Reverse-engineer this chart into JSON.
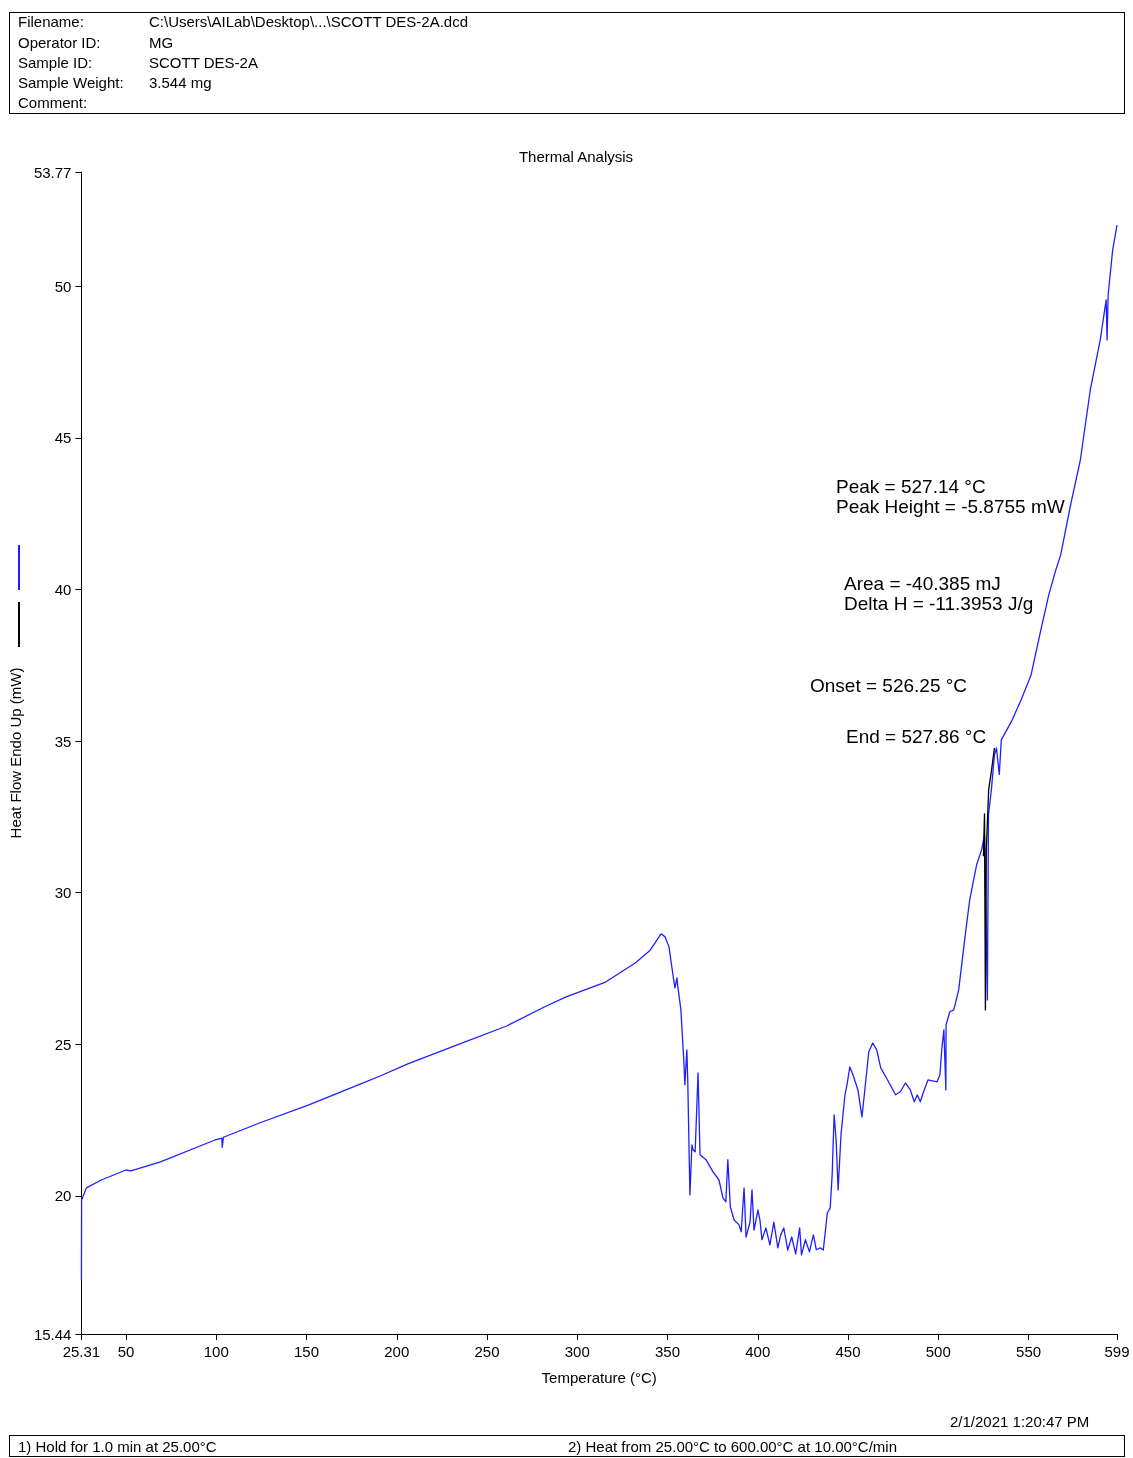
{
  "chart_data": {
    "type": "line",
    "title": "Thermal Analysis",
    "xlabel": "Temperature (°C)",
    "ylabel": "Heat Flow Endo Up (mW)",
    "annotations": [
      "Filename:",
      "C:\\Users\\AILab\\Desktop\\...\\SCOTT DES-2A.dcd",
      "Operator ID:",
      "MG",
      "Sample ID:",
      "SCOTT DES-2A",
      "Sample Weight:",
      "3.544 mg",
      "Comment:",
      "Peak = 527.14 °C",
      "Peak Height = -5.8755 mW",
      "Area = -40.385 mJ",
      "Delta H = -11.3953 J/g",
      "Onset = 526.25 °C",
      "End = 527.86 °C",
      "2/1/2021 1:20:47 PM",
      "1)  Hold for 1.0 min at 25.00°C",
      "2)    Heat from 25.00°C to 600.00°C at 10.00°C/min"
    ],
    "series": [
      {
        "color": "#2020ff",
        "x": [
          25.31,
          25.4,
          28.05,
          36.3,
          50,
          52.7,
          69.1,
          99.3,
          103.1,
          103.3,
          104,
          123.9,
          151.3,
          178.7,
          190.8,
          206.1,
          233.5,
          260.9,
          282.8,
          293.8,
          315.7,
          332.1,
          340.4,
          346.4,
          348.6,
          350.8,
          353,
          354.1,
          355.2,
          355.7,
          357.4,
          359,
          359.6,
          360.7,
          361.2,
          362.4,
          363.5,
          364.1,
          365.3,
          366.9,
          368,
          371.3,
          375.2,
          378.5,
          380.7,
          382.3,
          383.4,
          384.8,
          386.9,
          389.6,
          390.8,
          392.4,
          393.5,
          395.7,
          396.8,
          397.9,
          400.1,
          401.2,
          402.3,
          404.5,
          406.7,
          408.9,
          411.1,
          412.7,
          414.4,
          416.6,
          418.8,
          421,
          423.2,
          424.2,
          426.4,
          428.6,
          430.8,
          432.4,
          434.6,
          436.3,
          438.5,
          440.1,
          441.2,
          442.3,
          443.4,
          444.5,
          446.1,
          448.3,
          449.4,
          451,
          452.7,
          455.5,
          457.7,
          459.3,
          461.5,
          463.7,
          465.9,
          468.1,
          471.9,
          476.3,
          479,
          481.8,
          484.5,
          486.7,
          488.4,
          490,
          492.2,
          494.3,
          499.3,
          500.9,
          502,
          503.1,
          504.2,
          504.3,
          506.4,
          508.6,
          511.3,
          514.6,
          517.4,
          521.2,
          524,
          525.6,
          527.2,
          527.8,
          529.4,
          531.1,
          532.2,
          533.8,
          534.9,
          540.4,
          545.9,
          551.4,
          556.8,
          561.2,
          565.1,
          567.8,
          573.3,
          578.7,
          584.2,
          589.7,
          593,
          593.5,
          594.1,
          596.6,
          599
        ],
        "values": [
          17.23,
          19.86,
          20.26,
          20.52,
          20.85,
          20.82,
          21.12,
          21.84,
          21.9,
          21.6,
          21.93,
          22.4,
          23.0,
          23.66,
          23.95,
          24.35,
          24.98,
          25.6,
          26.26,
          26.56,
          27.05,
          27.68,
          28.1,
          28.64,
          28.54,
          28.21,
          27.29,
          26.86,
          27.19,
          26.9,
          26.13,
          24.48,
          23.66,
          24.81,
          23.82,
          20.03,
          21.68,
          21.52,
          21.45,
          24.05,
          21.35,
          21.19,
          20.79,
          20.52,
          19.93,
          19.8,
          21.19,
          19.63,
          19.2,
          19.04,
          18.81,
          20.26,
          18.64,
          19.13,
          20.19,
          18.87,
          19.53,
          19.2,
          18.55,
          18.94,
          18.38,
          19.13,
          18.28,
          18.71,
          18.94,
          18.21,
          18.64,
          18.08,
          18.94,
          18.05,
          18.55,
          18.15,
          18.71,
          18.22,
          18.28,
          18.21,
          19.43,
          19.6,
          20.69,
          22.67,
          21.84,
          20.19,
          22.01,
          23.33,
          23.66,
          24.25,
          23.99,
          23.49,
          22.6,
          23.49,
          24.75,
          25.04,
          24.81,
          24.22,
          23.82,
          23.33,
          23.43,
          23.72,
          23.49,
          23.1,
          23.33,
          23.1,
          23.49,
          23.82,
          23.76,
          23.99,
          24.88,
          25.47,
          23.49,
          25.64,
          26.07,
          26.13,
          26.79,
          28.44,
          29.76,
          30.91,
          31.41,
          31.9,
          26.46,
          32.56,
          33.39,
          34.54,
          34.77,
          33.9,
          35.04,
          35.63,
          36.36,
          37.18,
          38.66,
          39.82,
          40.64,
          41.14,
          42.79,
          44.27,
          46.58,
          48.23,
          49.55,
          48.23,
          49.72,
          51.2,
          52.02
        ]
      },
      {
        "color": "#000000",
        "x": [
          525.0,
          525.6,
          526.1,
          526.6,
          527.9,
          529.4,
          531.1
        ],
        "values": [
          31.2,
          32.6,
          26.13,
          31.4,
          33.39,
          34.0,
          34.77
        ]
      }
    ],
    "xlim": [
      25.31,
      599
    ],
    "xticks": [
      25.31,
      50,
      100,
      150,
      200,
      250,
      300,
      350,
      400,
      450,
      500,
      550,
      599
    ],
    "ylim": [
      15.44,
      53.77
    ],
    "yticks": [
      15.44,
      20,
      25,
      30,
      35,
      40,
      45,
      50,
      53.77
    ],
    "grid": false,
    "marker": "none",
    "line_style": "solid"
  }
}
